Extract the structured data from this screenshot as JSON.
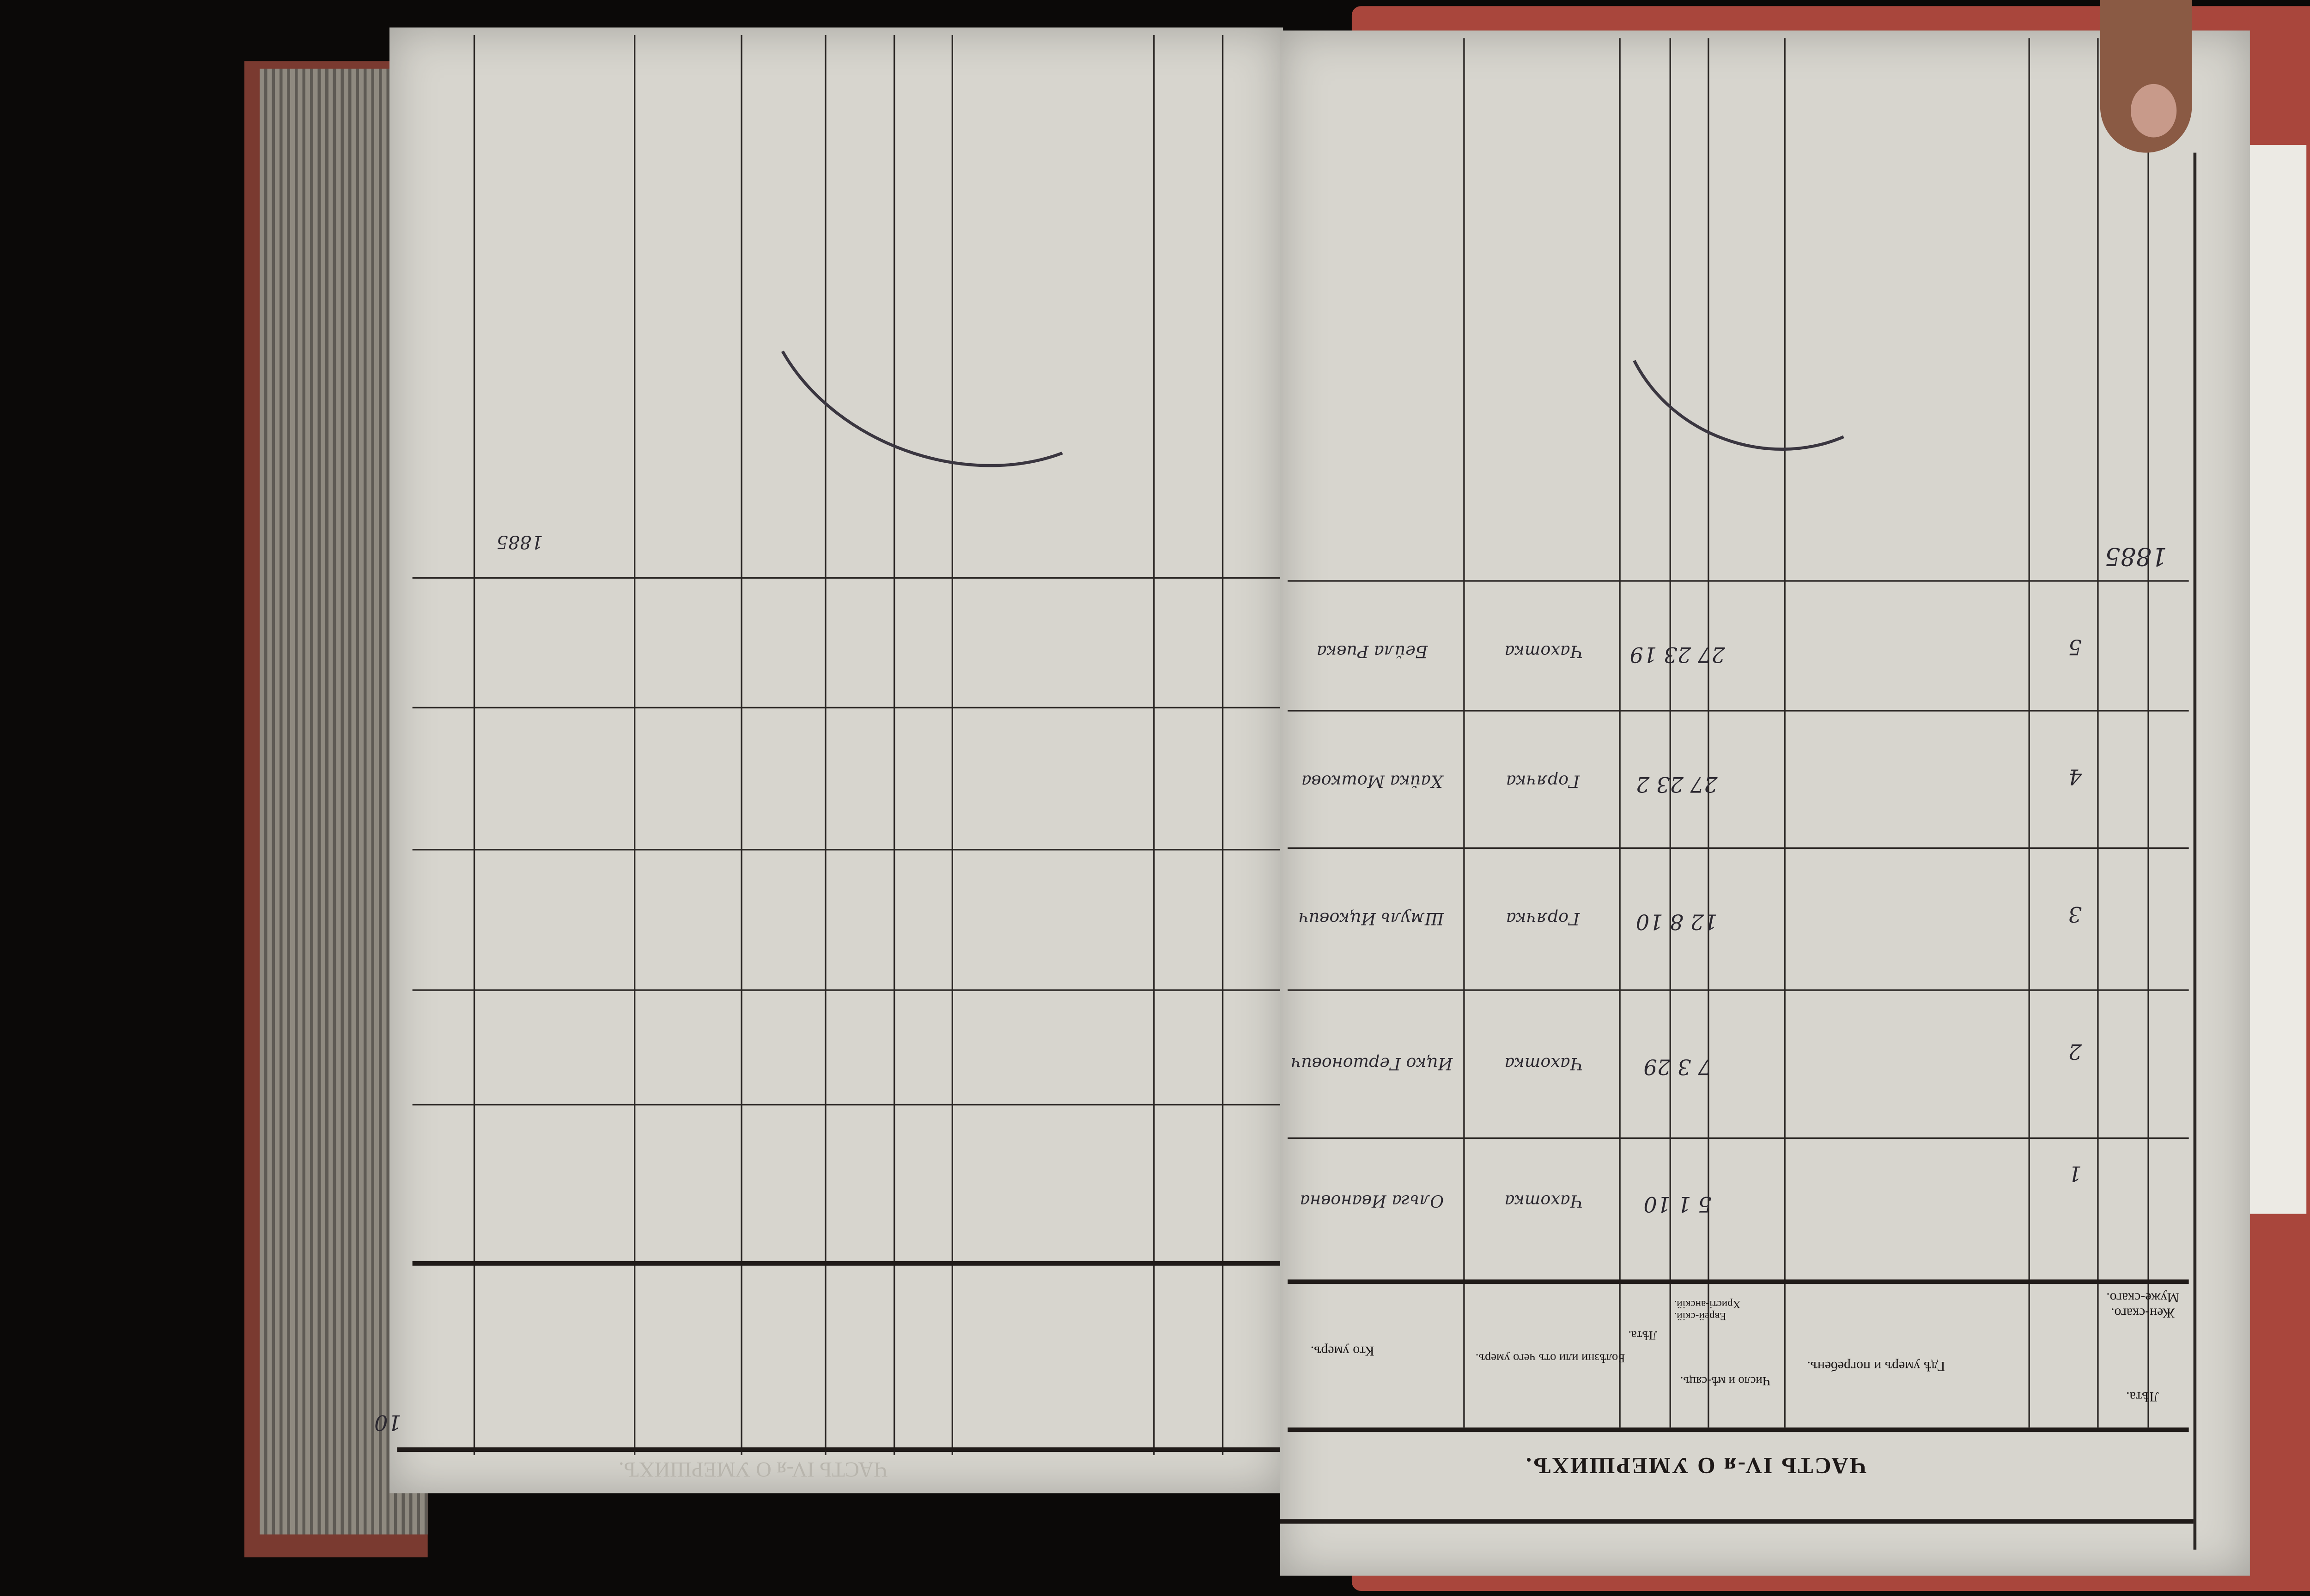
{
  "document": {
    "title": "ЧАСТЬ IV-я О УМЕРШИХЪ.",
    "orientation": "upside-down",
    "colors": {
      "cover": "#a9463c",
      "paper": "#d7d5ce",
      "ink": "#2b2830"
    },
    "headers": {
      "years": "Лѣта.",
      "male": "Муже-скаго.",
      "female": "Жен-скаго.",
      "where": "Гдѣ умеръ и погребенъ.",
      "christian": "Христі-анскій.",
      "jewish": "Еврей-скій.",
      "date": "Число и мѣ-сяцъ.",
      "age": "Лѣта.",
      "cause": "Болѣзни или отъ чего умеръ.",
      "who": "Кто умеръ."
    },
    "rows": [
      {
        "no": "1",
        "date": "5 1 10",
        "cause": "Чахотка",
        "who": "Ольга Ивановна"
      },
      {
        "no": "2",
        "date": "7 3 29",
        "cause": "Чахотка",
        "who": "Ицко Гершонович"
      },
      {
        "no": "3",
        "date": "12 8 10",
        "cause": "Горячка",
        "who": "Шмуль Ицкович"
      },
      {
        "no": "4",
        "date": "27 23 2",
        "cause": "Горячка",
        "who": "Хайка Мошкова"
      },
      {
        "no": "5",
        "date": "27 23 19",
        "cause": "Чахотка",
        "who": "Бейла Ривка"
      }
    ],
    "year_note": "1885",
    "left_page_number": "10",
    "left_title": "ЧАСТЬ IV-я О УМЕРШИХЪ."
  }
}
